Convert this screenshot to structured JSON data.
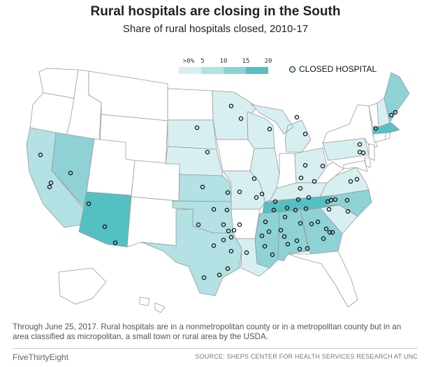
{
  "header": {
    "title": "Rural hospitals are closing in the South",
    "subtitle": "Share of rural hospitals closed, 2010-17"
  },
  "legend": {
    "ticks": [
      ">0%",
      "5",
      "10",
      "15",
      "20"
    ],
    "colors": [
      "#d8eff1",
      "#b3e1e4",
      "#8ed2d6",
      "#55c0c4"
    ],
    "closed_label": "CLOSED HOSPITAL",
    "marker_color": "#111111",
    "no_closure_color": "#ffffff",
    "border_color": "#9a9a9a"
  },
  "map": {
    "states_shaded": [
      {
        "state": "TN",
        "bin": 3
      },
      {
        "state": "AZ",
        "bin": 3
      },
      {
        "state": "MA",
        "bin": 3
      },
      {
        "state": "NV",
        "bin": 2
      },
      {
        "state": "ME",
        "bin": 2
      },
      {
        "state": "MS",
        "bin": 2
      },
      {
        "state": "AL",
        "bin": 2
      },
      {
        "state": "GA",
        "bin": 2
      },
      {
        "state": "NC",
        "bin": 2
      },
      {
        "state": "CA",
        "bin": 1
      },
      {
        "state": "TX",
        "bin": 1
      },
      {
        "state": "OK",
        "bin": 1
      },
      {
        "state": "KS",
        "bin": 1
      },
      {
        "state": "NE",
        "bin": 0
      },
      {
        "state": "SD",
        "bin": 0
      },
      {
        "state": "MN",
        "bin": 0
      },
      {
        "state": "WI",
        "bin": 0
      },
      {
        "state": "MO",
        "bin": 0
      },
      {
        "state": "KY",
        "bin": 0
      },
      {
        "state": "IL",
        "bin": 0
      },
      {
        "state": "MI",
        "bin": 0
      },
      {
        "state": "OH",
        "bin": 0
      },
      {
        "state": "PA",
        "bin": 0
      },
      {
        "state": "VA",
        "bin": 0
      },
      {
        "state": "SC",
        "bin": 0
      },
      {
        "state": "NH",
        "bin": 0
      },
      {
        "state": "LA",
        "bin": 0
      }
    ]
  },
  "footer": {
    "note": "Through June 25, 2017. Rural hospitals are in a nonmetropolitan county or in a metropolitan county but in an area classified as micropolitan, a small town or rural area by the USDA.",
    "brand": "FiveThirtyEight",
    "source": "SOURCE: SHEPS CENTER FOR HEALTH SERVICES RESEARCH AT UNC"
  }
}
